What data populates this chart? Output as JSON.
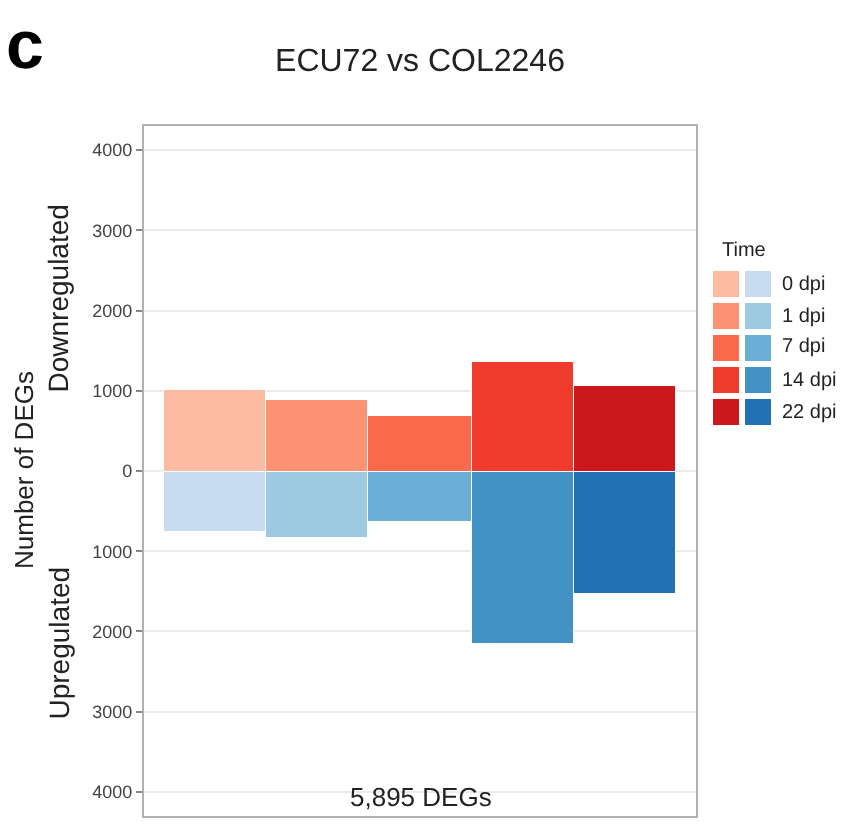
{
  "chart_data": {
    "type": "bar",
    "title": "ECU72 vs COL2246",
    "ylabel": "Number of DEGs",
    "legend_title": "Time",
    "categories": [
      null,
      null,
      null,
      null,
      null
    ],
    "series": [
      {
        "color": "#fdbba1",
        "values": [
          1000,
          null,
          null,
          null,
          null
        ]
      },
      {
        "name": "0 dpi",
        "color": "#c6dbef",
        "values": [
          -760,
          null,
          null,
          null,
          null
        ]
      },
      {
        "color": "#fc9272",
        "values": [
          null,
          890,
          null,
          null,
          null
        ]
      },
      {
        "name": "1 dpi",
        "color": "#9ecae1",
        "values": [
          null,
          -830,
          null,
          null,
          null
        ]
      },
      {
        "color": "#fb6a4a",
        "values": [
          null,
          null,
          680,
          null,
          null
        ]
      },
      {
        "name": "7 dpi",
        "color": "#6baed6",
        "values": [
          null,
          null,
          -630,
          null,
          null
        ]
      },
      {
        "color": "#ef3b2c",
        "values": [
          null,
          null,
          null,
          1360,
          null
        ]
      },
      {
        "name": "14 dpi",
        "color": "#4292c6",
        "values": [
          null,
          null,
          null,
          -2150,
          null
        ]
      },
      {
        "color": "#cb181d",
        "values": [
          null,
          null,
          null,
          null,
          1060
        ]
      },
      {
        "name": "22 dpi",
        "color": "#2171b5",
        "values": [
          null,
          null,
          null,
          null,
          -1530
        ]
      }
    ],
    "stacked": true,
    "ylim": [
      -4300,
      4300
    ],
    "yticks": [
      {
        "value": -4000,
        "label": "4000"
      },
      {
        "value": -3000,
        "label": "3000"
      },
      {
        "value": -2000,
        "label": "2000"
      },
      {
        "value": -1000,
        "label": "1000"
      },
      0,
      1000,
      2000,
      3000,
      4000
    ],
    "tick_labels": "y",
    "grid": "y",
    "legend": "right",
    "annotations": [
      "c",
      "Downregulated",
      "Upregulated",
      "5,895 DEGs"
    ]
  }
}
